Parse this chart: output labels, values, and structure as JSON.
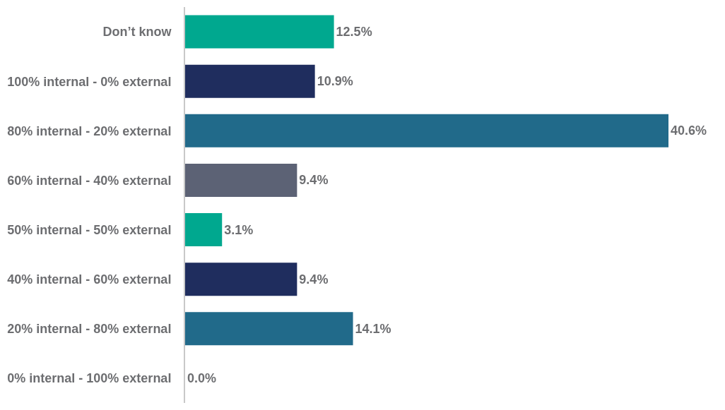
{
  "chart_data": {
    "type": "bar",
    "orientation": "horizontal",
    "categories": [
      "Don’t know",
      "100% internal - 0% external",
      "80% internal - 20% external",
      "60% internal - 40% external",
      "50% internal - 50% external",
      "40% internal - 60% external",
      "20% internal - 80% external",
      "0% internal - 100% external"
    ],
    "values": [
      12.5,
      10.9,
      40.6,
      9.4,
      3.1,
      9.4,
      14.1,
      0.0
    ],
    "colors": [
      "#00a88f",
      "#1f2d5e",
      "#216a8a",
      "#5c6275",
      "#00a88f",
      "#1f2d5e",
      "#216a8a",
      "#216a8a"
    ],
    "value_labels": [
      "12.5%",
      "10.9%",
      "40.6%",
      "9.4%",
      "3.1%",
      "9.4%",
      "14.1%",
      "0.0%"
    ],
    "legend": false
  }
}
